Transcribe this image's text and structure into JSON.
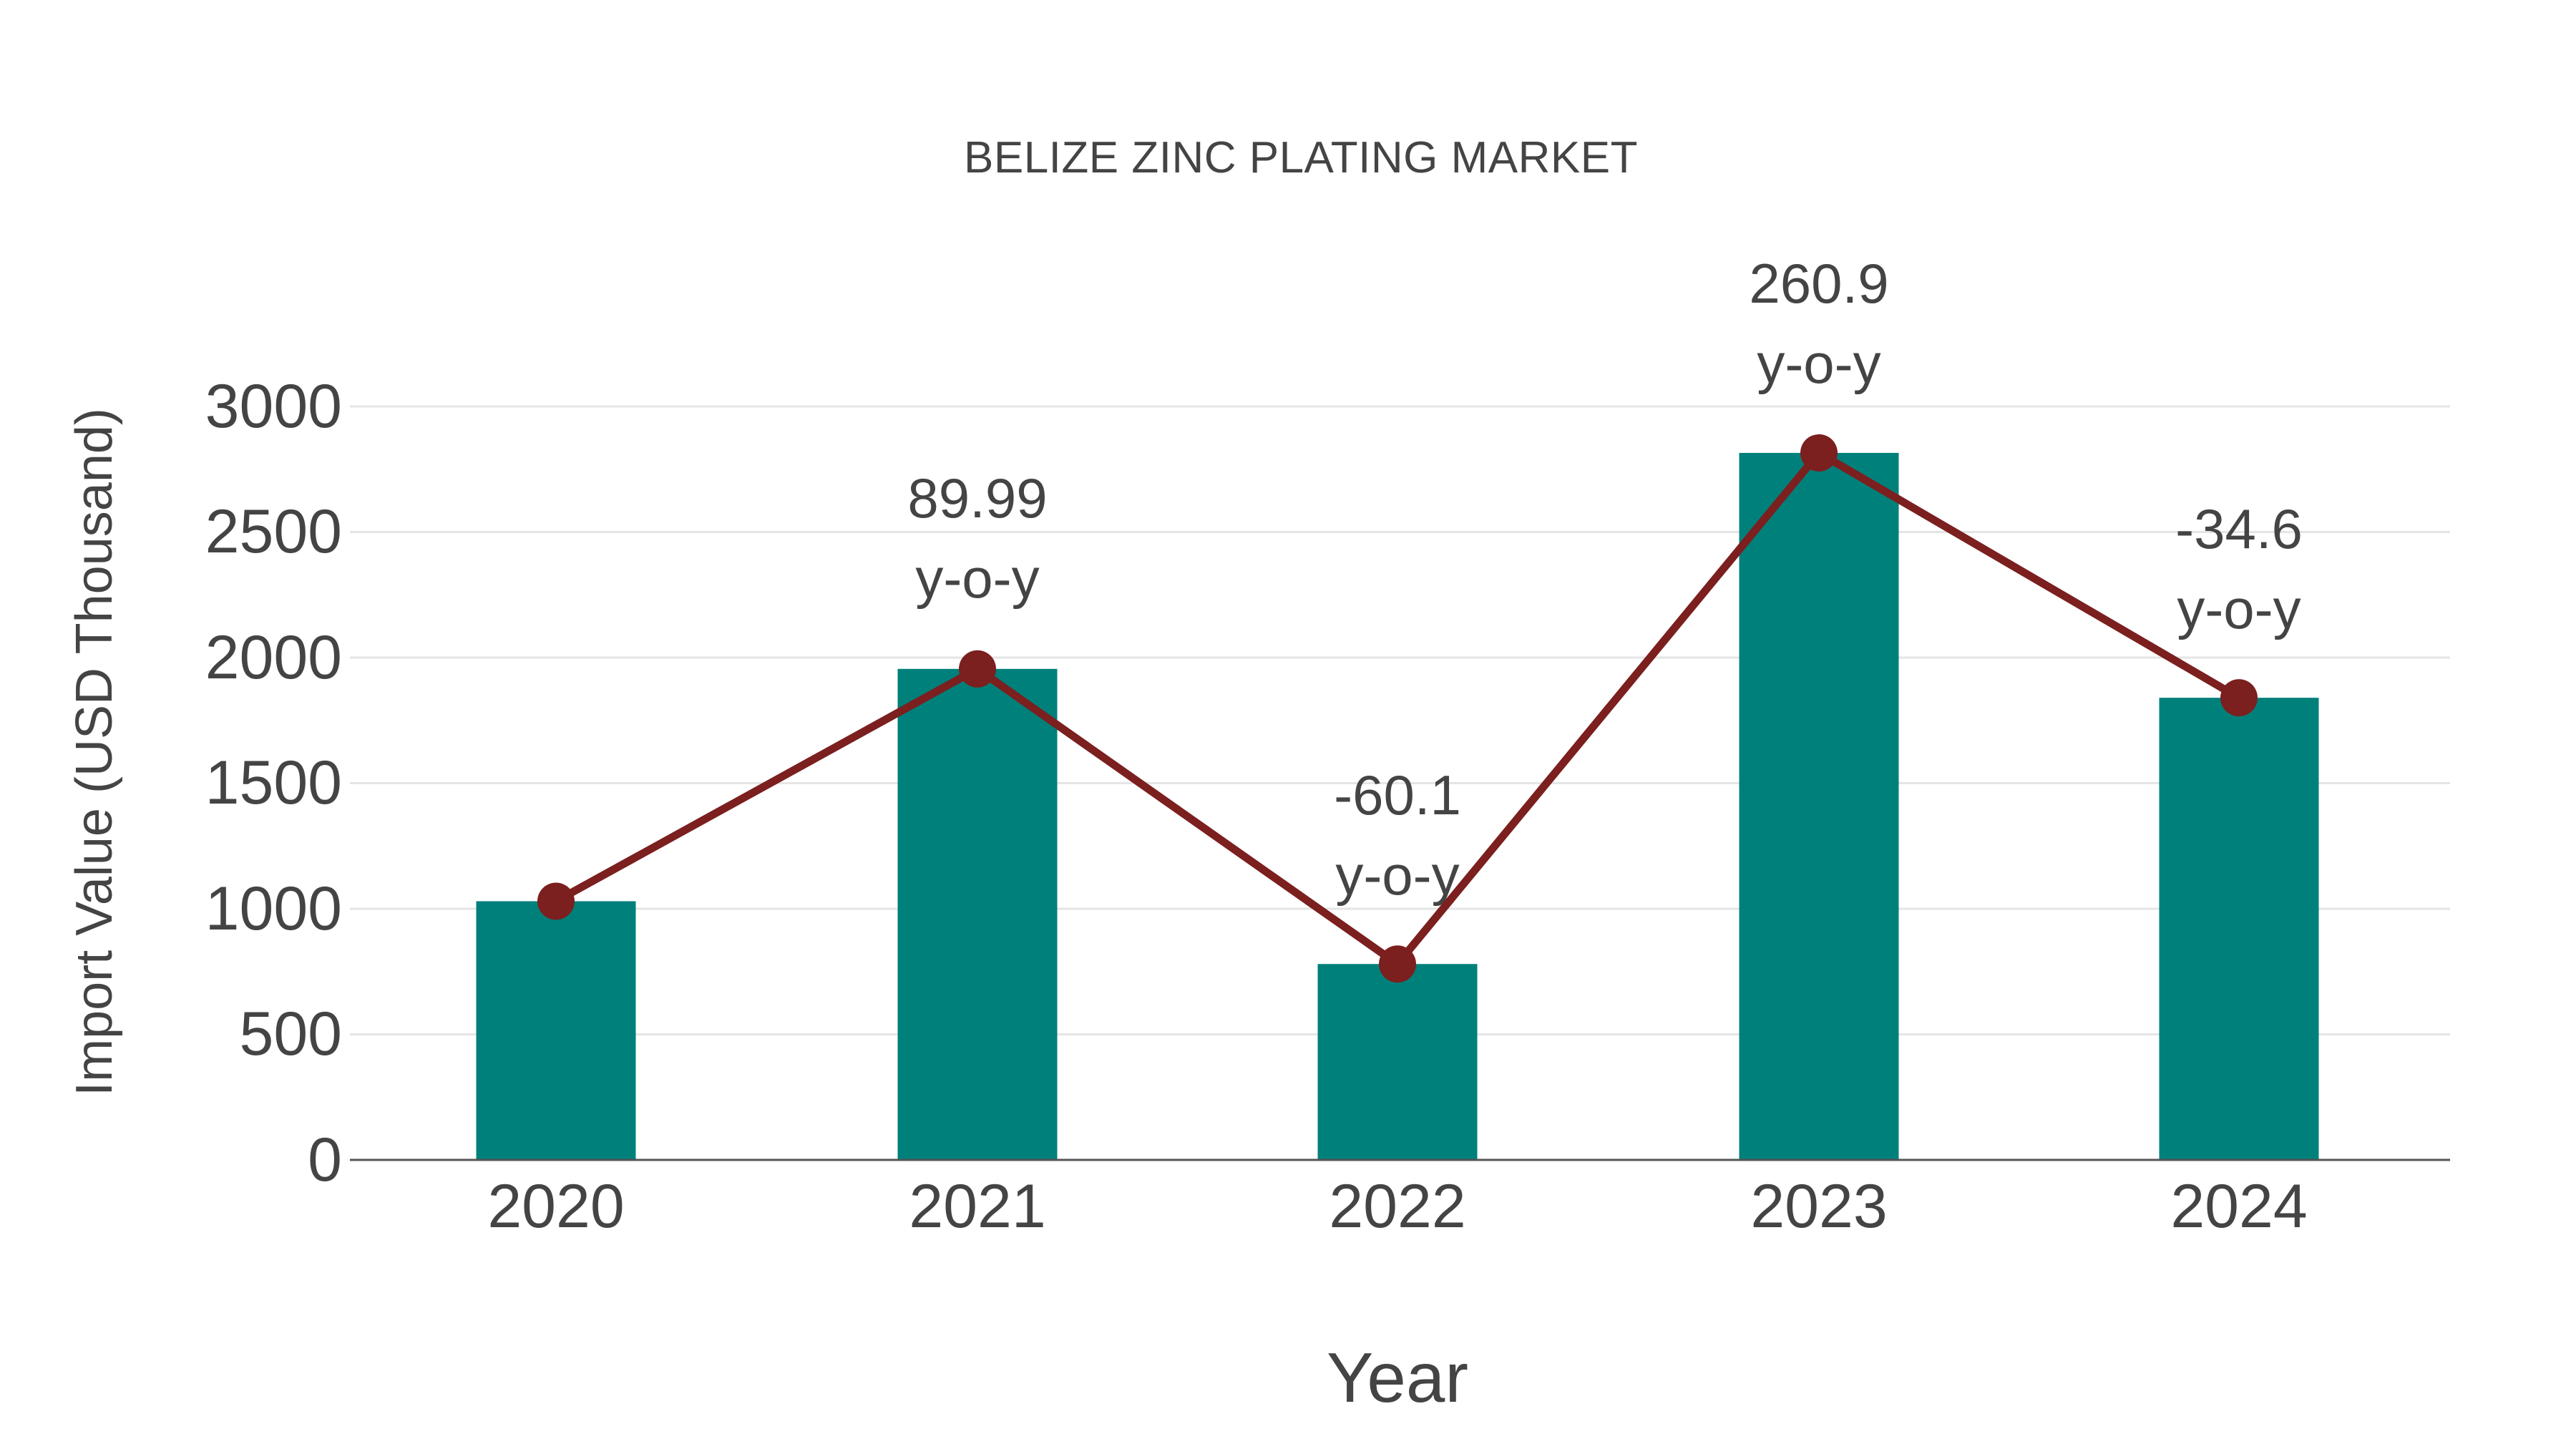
{
  "title": "BELIZE ZINC PLATING MARKET",
  "colors": {
    "bar": "#00807B",
    "line": "#7B1F1F",
    "text": "#444444",
    "grid": "#E5E5E5",
    "axis": "#555555"
  },
  "axes": {
    "x_title": "Year",
    "y_title": "Import Value (USD Thousand)",
    "y_ticks": [
      "0",
      "500",
      "1000",
      "1500",
      "2000",
      "2500",
      "3000"
    ],
    "x_ticks": [
      "2020",
      "2021",
      "2022",
      "2023",
      "2024"
    ]
  },
  "annotations": [
    {
      "year": "2021",
      "value": "89.99",
      "suffix": "y-o-y"
    },
    {
      "year": "2022",
      "value": "-60.1",
      "suffix": "y-o-y"
    },
    {
      "year": "2023",
      "value": "260.9",
      "suffix": "y-o-y"
    },
    {
      "year": "2024",
      "value": "-34.6",
      "suffix": "y-o-y"
    }
  ],
  "chart_data": {
    "type": "bar",
    "title": "BELIZE ZINC PLATING MARKET",
    "xlabel": "Year",
    "ylabel": "Import Value (USD Thousand)",
    "categories": [
      "2020",
      "2021",
      "2022",
      "2023",
      "2024"
    ],
    "series": [
      {
        "name": "Import Value (bar)",
        "type": "bar",
        "values": [
          1030,
          1955,
          780,
          2815,
          1840
        ]
      },
      {
        "name": "Import Value (line)",
        "type": "line",
        "values": [
          1030,
          1955,
          780,
          2815,
          1840
        ]
      }
    ],
    "yoy_labels": [
      null,
      "89.99 y-o-y",
      "-60.1 y-o-y",
      "260.9 y-o-y",
      "-34.6 y-o-y"
    ],
    "ylim": [
      0,
      3000
    ],
    "yticks": [
      0,
      500,
      1000,
      1500,
      2000,
      2500,
      3000
    ],
    "grid": true,
    "legend": "none"
  }
}
